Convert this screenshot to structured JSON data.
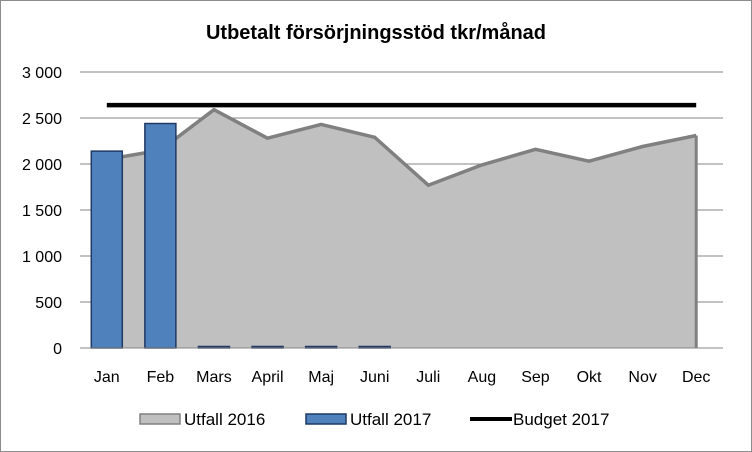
{
  "chart_data": {
    "type": "bar",
    "title": "Utbetalt försörjningsstöd tkr/månad",
    "categories": [
      "Jan",
      "Feb",
      "Mars",
      "April",
      "Maj",
      "Juni",
      "Juli",
      "Aug",
      "Sep",
      "Okt",
      "Nov",
      "Dec"
    ],
    "ylim": [
      0,
      3000
    ],
    "ytick_values": [
      0,
      500,
      1000,
      1500,
      2000,
      2500,
      3000
    ],
    "ytick_labels": [
      "0",
      "500",
      "1 000",
      "1 500",
      "2 000",
      "2 500",
      "3 000"
    ],
    "grid": true,
    "legend_position": "bottom",
    "series": [
      {
        "name": "Utfall 2016",
        "kind": "area",
        "color": "#c0c0c0",
        "stroke": "#808080",
        "values": [
          2050,
          2150,
          2590,
          2280,
          2430,
          2290,
          1770,
          1990,
          2160,
          2030,
          2190,
          2310
        ]
      },
      {
        "name": "Utfall 2017",
        "kind": "bar",
        "color": "#4f81bd",
        "stroke": "#1f3864",
        "values": [
          2140,
          2440,
          0,
          0,
          0,
          0,
          null,
          null,
          null,
          null,
          null,
          null
        ]
      },
      {
        "name": "Budget 2017",
        "kind": "line",
        "color": "#000000",
        "values": [
          2640,
          2640,
          2640,
          2640,
          2640,
          2640,
          2640,
          2640,
          2640,
          2640,
          2640,
          2640
        ]
      }
    ]
  }
}
